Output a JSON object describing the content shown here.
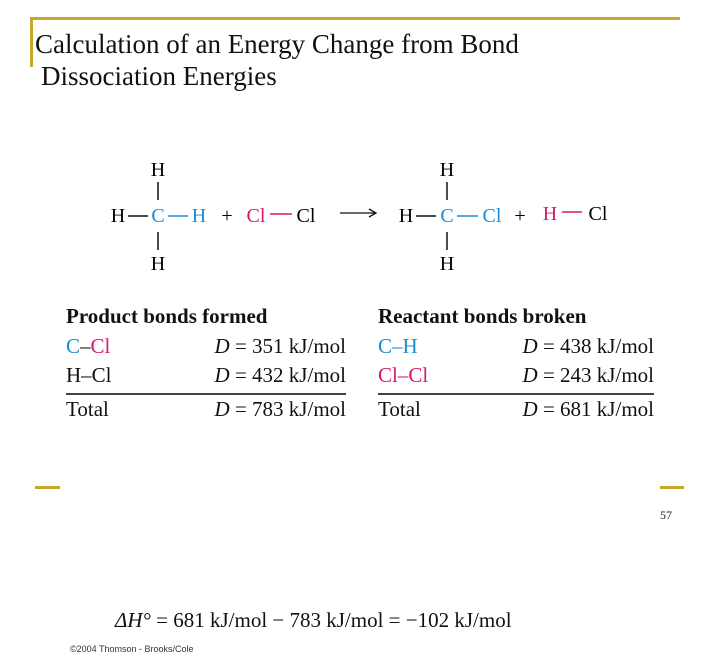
{
  "title": {
    "line1": "Calculation of an Energy Change from Bond",
    "line2": "Dissociation Energies"
  },
  "colors": {
    "accent_gold": "#c8a82a",
    "carbon_blue": "#1b8bd3",
    "chlorine_pink": "#d6186e"
  },
  "reaction": {
    "reactant1": {
      "top": "H",
      "left": "H",
      "center": "C",
      "right": "H",
      "bottom": "H"
    },
    "plus1": "+",
    "reactant2": {
      "left": "Cl",
      "right": "Cl"
    },
    "product1": {
      "top": "H",
      "left": "H",
      "center": "C",
      "right": "Cl",
      "bottom": "H"
    },
    "plus2": "+",
    "product2": {
      "left": "H",
      "right": "Cl"
    }
  },
  "product_bonds": {
    "heading": "Product bonds formed",
    "rows": [
      {
        "atom1": "C",
        "dash": "–",
        "atom2": "Cl",
        "d": "D",
        "value": " = 351 kJ/mol"
      },
      {
        "bond": "H–Cl",
        "d": "D",
        "value": " = 432 kJ/mol"
      }
    ],
    "total": {
      "label": "Total",
      "d": "D",
      "value": " = 783 kJ/mol"
    }
  },
  "reactant_bonds": {
    "heading": "Reactant bonds broken",
    "rows": [
      {
        "atom1": "C",
        "dash": "–",
        "atom2": "H",
        "d": "D",
        "value": " = 438 kJ/mol"
      },
      {
        "bond": "Cl–Cl",
        "d": "D",
        "value": " = 243 kJ/mol"
      }
    ],
    "total": {
      "label": "Total",
      "d": "D",
      "value": " = 681 kJ/mol"
    }
  },
  "enthalpy": {
    "lhs": "ΔH°",
    "rhs": " = 681 kJ/mol − 783 kJ/mol = −102 kJ/mol"
  },
  "credit": "©2004 Thomson - Brooks/Cole",
  "page_number": "57"
}
